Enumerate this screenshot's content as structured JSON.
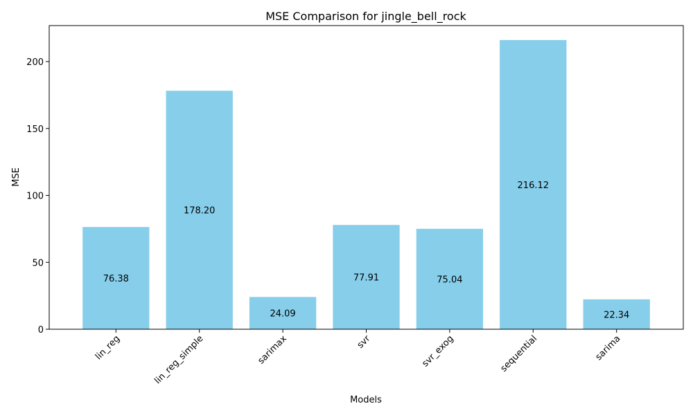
{
  "chart_data": {
    "type": "bar",
    "title": "MSE Comparison for jingle_bell_rock",
    "xlabel": "Models",
    "ylabel": "MSE",
    "categories": [
      "lin_reg",
      "lin_reg_simple",
      "sarimax",
      "svr",
      "svr_exog",
      "sequential",
      "sarima"
    ],
    "values": [
      76.38,
      178.2,
      24.09,
      77.91,
      75.04,
      216.12,
      22.34
    ],
    "value_labels": [
      "76.38",
      "178.20",
      "24.09",
      "77.91",
      "75.04",
      "216.12",
      "22.34"
    ],
    "ylim": [
      0,
      226.9
    ],
    "yticks": [
      0,
      50,
      100,
      150,
      200
    ],
    "bar_color": "#87ceeb",
    "grid": false,
    "legend": "none",
    "xtick_rotation": "45deg"
  }
}
